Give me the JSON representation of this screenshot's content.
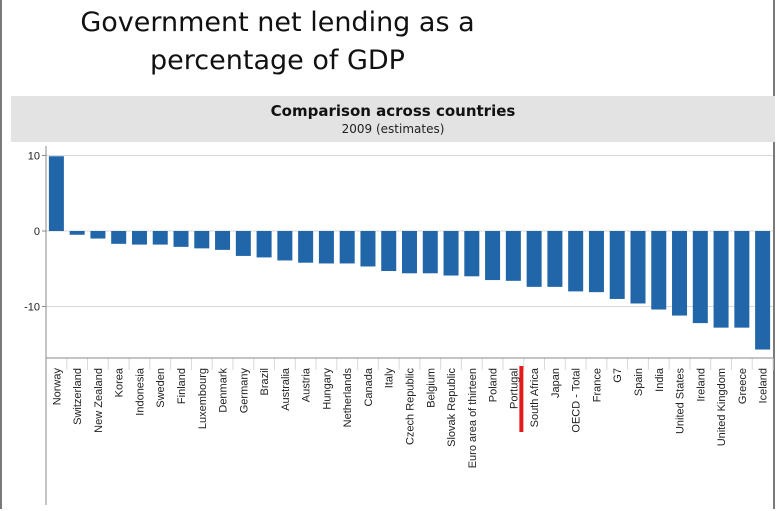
{
  "title_lines": [
    "Government net lending as a",
    "percentage of GDP"
  ],
  "panel": {
    "title": "Comparison across countries",
    "subtitle": "2009 (estimates)"
  },
  "colors": {
    "bar": "#2166a8",
    "highlight": "#e41a1c",
    "grid": "#d9d9d9",
    "axis": "#8a8a8a",
    "text": "#222222"
  },
  "chart_data": {
    "type": "bar",
    "title": "Comparison across countries",
    "subtitle": "2009 (estimates)",
    "xlabel": "",
    "ylabel": "",
    "ylim": [
      -16,
      11
    ],
    "yticks": [
      10,
      0,
      -10
    ],
    "grid": true,
    "highlight": "Portugal",
    "categories": [
      "Norway",
      "Switzerland",
      "New Zealand",
      "Korea",
      "Indonesia",
      "Sweden",
      "Finland",
      "Luxembourg",
      "Denmark",
      "Germany",
      "Brazil",
      "Australia",
      "Austria",
      "Hungary",
      "Netherlands",
      "Canada",
      "Italy",
      "Czech Republic",
      "Belgium",
      "Slovak Republic",
      "Euro area of thirteen",
      "Poland",
      "Portugal",
      "South Africa",
      "Japan",
      "OECD - Total",
      "France",
      "G7",
      "Spain",
      "India",
      "United States",
      "Ireland",
      "United Kingdom",
      "Greece",
      "Iceland"
    ],
    "values": [
      9.9,
      -0.5,
      -1.0,
      -1.7,
      -1.8,
      -1.8,
      -2.1,
      -2.3,
      -2.5,
      -3.3,
      -3.5,
      -3.9,
      -4.2,
      -4.3,
      -4.3,
      -4.7,
      -5.3,
      -5.6,
      -5.6,
      -5.9,
      -6.0,
      -6.5,
      -6.6,
      -7.4,
      -7.4,
      -8.0,
      -8.1,
      -9.0,
      -9.6,
      -10.4,
      -11.2,
      -12.2,
      -12.8,
      -12.8,
      -15.7
    ]
  }
}
